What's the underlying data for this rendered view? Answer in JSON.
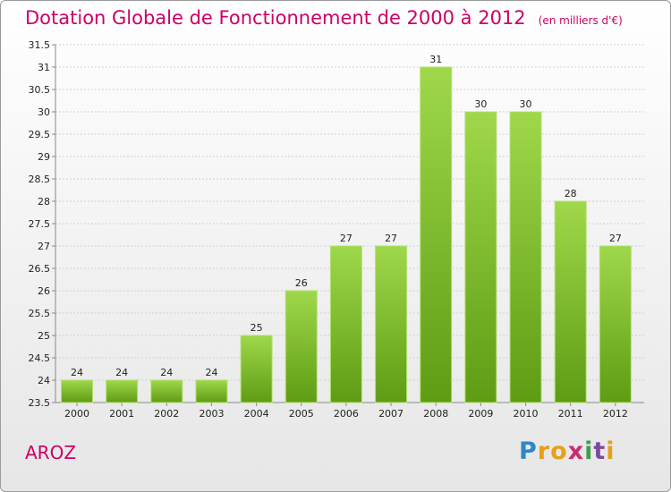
{
  "header": {
    "title": "Dotation Globale de Fonctionnement de 2000 à 2012",
    "unit": "(en milliers d'€)"
  },
  "footer": {
    "commune": "AROZ",
    "logo_letters": [
      "P",
      "r",
      "o",
      "x",
      "i",
      "t",
      "i"
    ],
    "logo_colors": [
      "#2f86c8",
      "#e6a019",
      "#e6a019",
      "#cc2a6e",
      "#3da04a",
      "#7a4aa0",
      "#e6a019"
    ]
  },
  "chart_data": {
    "type": "bar",
    "categories": [
      "2000",
      "2001",
      "2002",
      "2003",
      "2004",
      "2005",
      "2006",
      "2007",
      "2008",
      "2009",
      "2010",
      "2011",
      "2012"
    ],
    "values": [
      24,
      24,
      24,
      24,
      25,
      26,
      27,
      27,
      31,
      30,
      30,
      28,
      27
    ],
    "ylim": [
      23.5,
      31.5
    ],
    "yticks": [
      "23.5",
      "24",
      "24.5",
      "25",
      "25.5",
      "26",
      "26.5",
      "27",
      "27.5",
      "28",
      "28.5",
      "29",
      "29.5",
      "30",
      "30.5",
      "31",
      "31.5"
    ],
    "grid": true,
    "bar_color": "#7cbc2e"
  }
}
